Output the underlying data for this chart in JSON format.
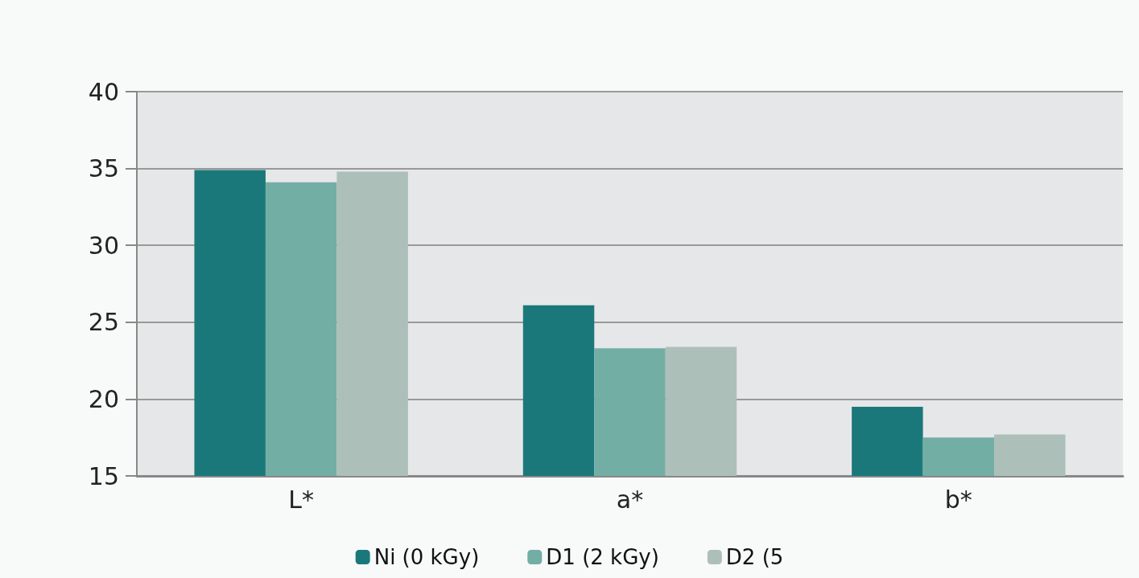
{
  "chart_data": {
    "type": "bar",
    "categories": [
      "L*",
      "a*",
      "b*"
    ],
    "series": [
      {
        "name": "Ni (0 kGy)",
        "color": "#1b787a",
        "values": [
          34.9,
          26.1,
          19.5
        ]
      },
      {
        "name": "D1 (2 kGy)",
        "color": "#73aea4",
        "values": [
          34.1,
          23.3,
          17.5
        ]
      },
      {
        "name": "D2 (5",
        "color": "#adbfb9",
        "values": [
          34.8,
          23.4,
          17.7
        ]
      }
    ],
    "ylim": [
      15,
      40
    ],
    "yticks": [
      15,
      20,
      25,
      30,
      35,
      40
    ],
    "grid": "y",
    "legend": "bottom"
  }
}
